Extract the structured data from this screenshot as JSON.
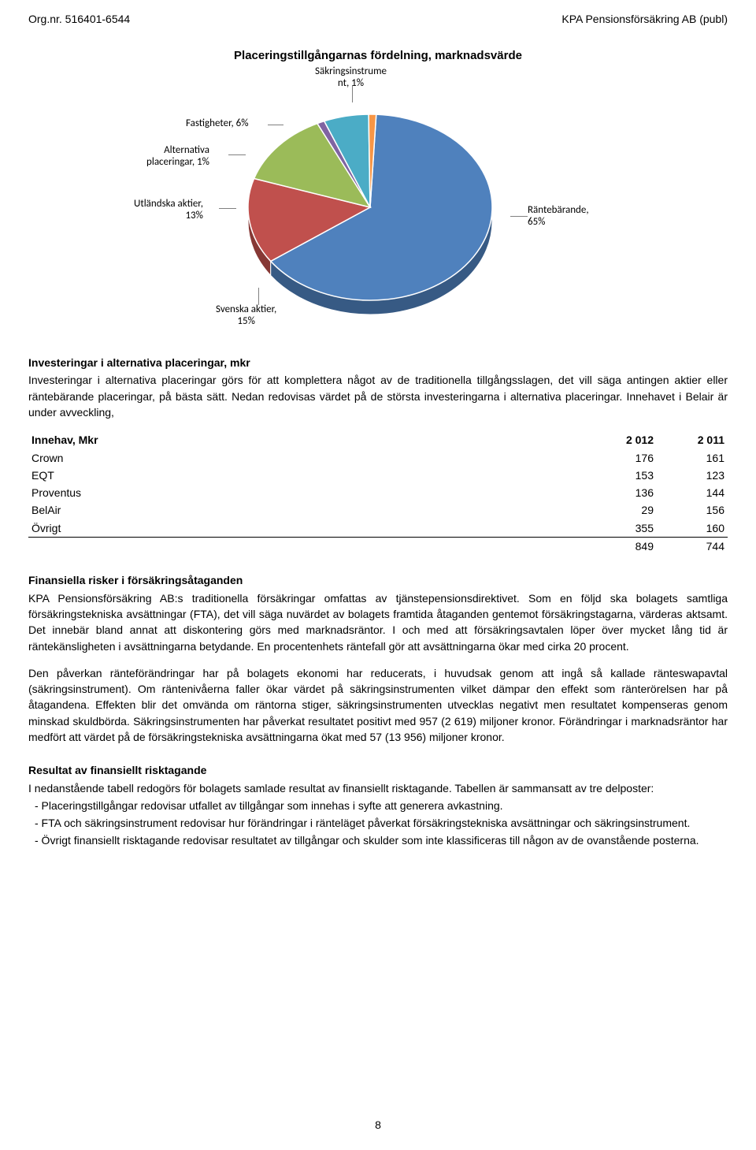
{
  "header": {
    "left": "Org.nr. 516401-6544",
    "right": "KPA Pensionsförsäkring AB (publ)"
  },
  "chart": {
    "title": "Placeringstillgångarnas fördelning, marknadsvärde",
    "type": "pie",
    "background_color": "#ffffff",
    "label_font": "Calibri",
    "label_fontsize": 13,
    "slices": [
      {
        "label": "Räntebärande, 65%",
        "value": 65,
        "color": "#4f81bd"
      },
      {
        "label": "Svenska aktier, 15%",
        "value": 15,
        "color": "#c0504d"
      },
      {
        "label": "Utländska aktier, 13%",
        "value": 13,
        "color": "#9bbb59"
      },
      {
        "label": "Alternativa placeringar, 1%",
        "value": 1,
        "color": "#8064a2"
      },
      {
        "label": "Fastigheter, 6%",
        "value": 6,
        "color": "#4bacc6"
      },
      {
        "label": "Säkringsinstrument, 1%",
        "value": 1,
        "color": "#f79646"
      }
    ],
    "border_color": "#ffffff",
    "tick_color": "#808080"
  },
  "section1": {
    "heading": "Investeringar i alternativa placeringar, mkr",
    "body": "Investeringar i alternativa placeringar görs för att komplettera något av de traditionella tillgångsslagen, det vill säga antingen aktier eller räntebärande placeringar, på bästa sätt. Nedan redovisas värdet på de största investeringarna i alternativa placeringar. Innehavet i Belair är under avveckling,"
  },
  "holdings": {
    "columns": [
      "Innehav, Mkr",
      "2 012",
      "2 011"
    ],
    "rows": [
      [
        "Crown",
        "176",
        "161"
      ],
      [
        "EQT",
        "153",
        "123"
      ],
      [
        "Proventus",
        "136",
        "144"
      ],
      [
        "BelAir",
        "29",
        "156"
      ],
      [
        "Övrigt",
        "355",
        "160"
      ]
    ],
    "total": [
      "",
      "849",
      "744"
    ]
  },
  "section2": {
    "heading": "Finansiella risker i försäkringsåtaganden",
    "p1": "KPA Pensionsförsäkring AB:s traditionella försäkringar omfattas av tjänstepensionsdirektivet. Som en följd ska bolagets samtliga försäkringstekniska avsättningar (FTA), det vill säga nuvärdet av bolagets framtida åtaganden gentemot försäkringstagarna, värderas aktsamt. Det innebär bland annat att diskontering görs med marknadsräntor. I och med att försäkringsavtalen löper över mycket lång tid är räntekänsligheten i avsättningarna betydande. En procentenhets räntefall gör att avsättningarna ökar med cirka 20 procent.",
    "p2": "Den påverkan ränteförändringar har på bolagets ekonomi har reducerats, i huvudsak genom att ingå så kallade ränteswapavtal (säkringsinstrument). Om räntenivåerna faller ökar värdet på säkringsinstrumenten vilket dämpar den effekt som ränterörelsen har på åtagandena. Effekten blir det omvända om räntorna stiger, säkringsinstrumenten utvecklas negativt men resultatet kompenseras genom minskad skuldbörda. Säkringsinstrumenten har påverkat resultatet positivt med 957 (2 619) miljoner kronor. Förändringar i marknadsräntor har medfört att värdet på de försäkringstekniska avsättningarna ökat med 57 (13 956) miljoner kronor."
  },
  "section3": {
    "heading": "Resultat av finansiellt risktagande",
    "intro": "I nedanstående tabell redogörs för bolagets samlade resultat av finansiellt risktagande. Tabellen är sammansatt av tre delposter:",
    "bullets": [
      "- Placeringstillgångar redovisar utfallet av tillgångar som innehas i syfte att generera avkastning.",
      "- FTA och säkringsinstrument redovisar hur förändringar i ränteläget påverkat försäkringstekniska avsättningar och säkringsinstrument.",
      "- Övrigt finansiellt risktagande redovisar resultatet av tillgångar och skulder som inte klassificeras till någon av de ovanstående posterna."
    ]
  },
  "page_number": "8"
}
